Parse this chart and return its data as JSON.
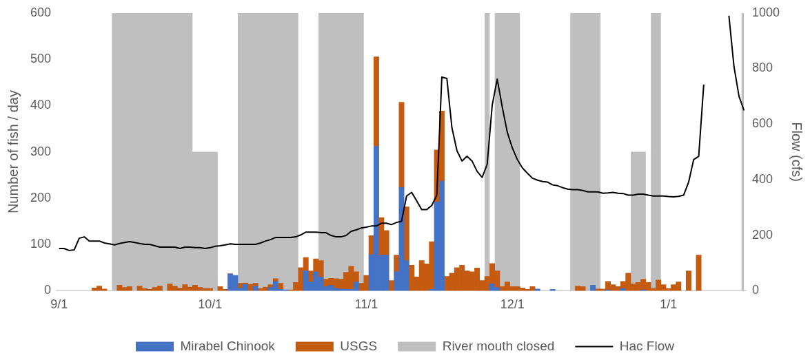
{
  "chart_data": {
    "type": "bar",
    "categories": [
      "9/1",
      null,
      null,
      null,
      null,
      null,
      null,
      null,
      null,
      null,
      null,
      null,
      null,
      null,
      null,
      null,
      null,
      null,
      null,
      null,
      null,
      null,
      null,
      null,
      null,
      null,
      null,
      null,
      null,
      null,
      "10/1",
      null,
      null,
      null,
      null,
      null,
      null,
      null,
      null,
      null,
      null,
      null,
      null,
      null,
      null,
      null,
      null,
      null,
      null,
      null,
      null,
      null,
      null,
      null,
      null,
      null,
      null,
      null,
      null,
      null,
      null,
      "11/1",
      null,
      null,
      null,
      null,
      null,
      null,
      null,
      null,
      null,
      null,
      null,
      null,
      null,
      null,
      null,
      null,
      null,
      null,
      null,
      null,
      null,
      null,
      null,
      null,
      null,
      null,
      null,
      null,
      "12/1",
      null,
      null,
      null,
      null,
      null,
      null,
      null,
      null,
      null,
      null,
      null,
      null,
      null,
      null,
      null,
      null,
      null,
      null,
      null,
      null,
      null,
      null,
      null,
      null,
      null,
      null,
      null,
      null,
      null,
      null,
      "1/1",
      null,
      null,
      null,
      null,
      null,
      null,
      null,
      null,
      null,
      null,
      null,
      null,
      null,
      null,
      null
    ],
    "series": [
      {
        "name": "Mirabel Chinook",
        "color": "#4472c4",
        "values": [
          null,
          null,
          null,
          null,
          null,
          null,
          null,
          null,
          null,
          null,
          null,
          null,
          null,
          null,
          null,
          null,
          null,
          null,
          null,
          null,
          null,
          null,
          null,
          null,
          null,
          null,
          null,
          null,
          null,
          null,
          null,
          null,
          null,
          null,
          36,
          33,
          6,
          14,
          null,
          10,
          null,
          null,
          7,
          20,
          3,
          2,
          null,
          null,
          null,
          43,
          19,
          41,
          30,
          9,
          12,
          6,
          4,
          3,
          3,
          19,
          null,
          null,
          78,
          312,
          77,
          77,
          null,
          41,
          223,
          65,
          null,
          null,
          null,
          null,
          3,
          192,
          237,
          null,
          null,
          null,
          null,
          null,
          null,
          null,
          null,
          null,
          15,
          7,
          null,
          null,
          null,
          null,
          null,
          null,
          null,
          4,
          null,
          null,
          3,
          null,
          null,
          null,
          null,
          null,
          null,
          null,
          12,
          null,
          null,
          2,
          null,
          null,
          5,
          null,
          null,
          null,
          2,
          null,
          null,
          null,
          null,
          null,
          null,
          null,
          null,
          null,
          null,
          null,
          null,
          null,
          null,
          null,
          null,
          null,
          null,
          null,
          null
        ]
      },
      {
        "name": "USGS",
        "color": "#c55a11",
        "values": [
          null,
          null,
          null,
          null,
          null,
          null,
          null,
          6,
          10,
          4,
          null,
          null,
          12,
          7,
          9,
          null,
          10,
          5,
          3,
          7,
          10,
          null,
          15,
          10,
          6,
          13,
          8,
          12,
          7,
          5,
          5,
          null,
          9,
          3,
          1,
          null,
          10,
          3,
          14,
          6,
          5,
          8,
          6,
          6,
          13,
          null,
          2,
          18,
          50,
          29,
          24,
          28,
          35,
          16,
          15,
          20,
          21,
          37,
          50,
          22,
          16,
          33,
          41,
          193,
          81,
          53,
          22,
          36,
          184,
          116,
          55,
          30,
          65,
          58,
          103,
          112,
          151,
          31,
          38,
          50,
          55,
          43,
          41,
          49,
          22,
          31,
          44,
          36,
          9,
          19,
          9,
          9,
          6,
          3,
          9,
          null,
          null,
          null,
          null,
          null,
          null,
          null,
          null,
          10,
          9,
          null,
          null,
          4,
          4,
          18,
          13,
          9,
          15,
          38,
          15,
          18,
          23,
          18,
          5,
          23,
          13,
          5,
          13,
          19,
          null,
          43,
          null,
          77,
          null,
          null,
          null,
          null,
          null,
          null,
          null,
          null,
          null
        ]
      },
      {
        "name": "River mouth closed",
        "type": "area",
        "axis": "y2",
        "color": "#bfbfbf",
        "values": [
          0,
          0,
          0,
          0,
          0,
          0,
          0,
          0,
          0,
          0,
          0,
          1000,
          1000,
          1000,
          1000,
          1000,
          1000,
          1000,
          1000,
          1000,
          1000,
          1000,
          1000,
          1000,
          1000,
          1000,
          1000,
          500,
          500,
          500,
          500,
          500,
          0,
          0,
          0,
          0,
          1000,
          1000,
          1000,
          1000,
          1000,
          1000,
          1000,
          1000,
          1000,
          1000,
          1000,
          1000,
          0,
          0,
          0,
          0,
          1000,
          1000,
          1000,
          1000,
          1000,
          1000,
          1000,
          1000,
          1000,
          0,
          0,
          0,
          0,
          0,
          0,
          0,
          0,
          0,
          0,
          0,
          0,
          0,
          0,
          0,
          0,
          0,
          0,
          0,
          0,
          0,
          0,
          0,
          0,
          1000,
          0,
          1000,
          1000,
          1000,
          1000,
          1000,
          0,
          0,
          0,
          0,
          0,
          0,
          0,
          0,
          0,
          0,
          1000,
          1000,
          1000,
          1000,
          1000,
          1000,
          0,
          0,
          0,
          0,
          0,
          0,
          500,
          500,
          500,
          0,
          1000,
          1000,
          0,
          0,
          0,
          0,
          0,
          0,
          0,
          0,
          0,
          0,
          0,
          0,
          0,
          0,
          0,
          0,
          1000
        ]
      },
      {
        "name": "Hac Flow",
        "type": "line",
        "axis": "y2",
        "color": "#000000",
        "values": [
          152,
          152,
          145,
          147,
          189,
          194,
          179,
          179,
          179,
          172,
          169,
          165,
          170,
          174,
          177,
          174,
          170,
          167,
          167,
          162,
          157,
          157,
          157,
          157,
          152,
          157,
          157,
          155,
          155,
          152,
          155,
          160,
          162,
          165,
          169,
          167,
          167,
          167,
          167,
          167,
          172,
          179,
          184,
          192,
          192,
          192,
          192,
          194,
          201,
          211,
          211,
          211,
          209,
          209,
          199,
          194,
          194,
          199,
          214,
          219,
          226,
          229,
          233,
          233,
          243,
          243,
          238,
          246,
          250,
          341,
          354,
          324,
          292,
          292,
          307,
          344,
          769,
          764,
          587,
          504,
          467,
          484,
          467,
          430,
          408,
          455,
          668,
          762,
          661,
          570,
          514,
          472,
          442,
          423,
          405,
          398,
          393,
          391,
          381,
          378,
          371,
          366,
          364,
          364,
          361,
          356,
          356,
          356,
          351,
          352,
          354,
          351,
          350,
          344,
          344,
          348,
          348,
          344,
          341,
          341,
          341,
          339,
          338,
          340,
          344,
          391,
          472,
          484,
          742,
          null,
          null,
          null,
          null,
          990,
          808,
          700,
          649
        ]
      }
    ],
    "ylabel": "Number of fish / day",
    "y2label": "Flow (cfs)",
    "ylim": [
      0,
      600
    ],
    "yticks": [
      0,
      100,
      200,
      300,
      400,
      500,
      600
    ],
    "y2lim": [
      0,
      1000
    ],
    "y2ticks": [
      0,
      200,
      400,
      600,
      800,
      1000
    ],
    "stacked": true,
    "grid": false,
    "legend": "bottom"
  }
}
